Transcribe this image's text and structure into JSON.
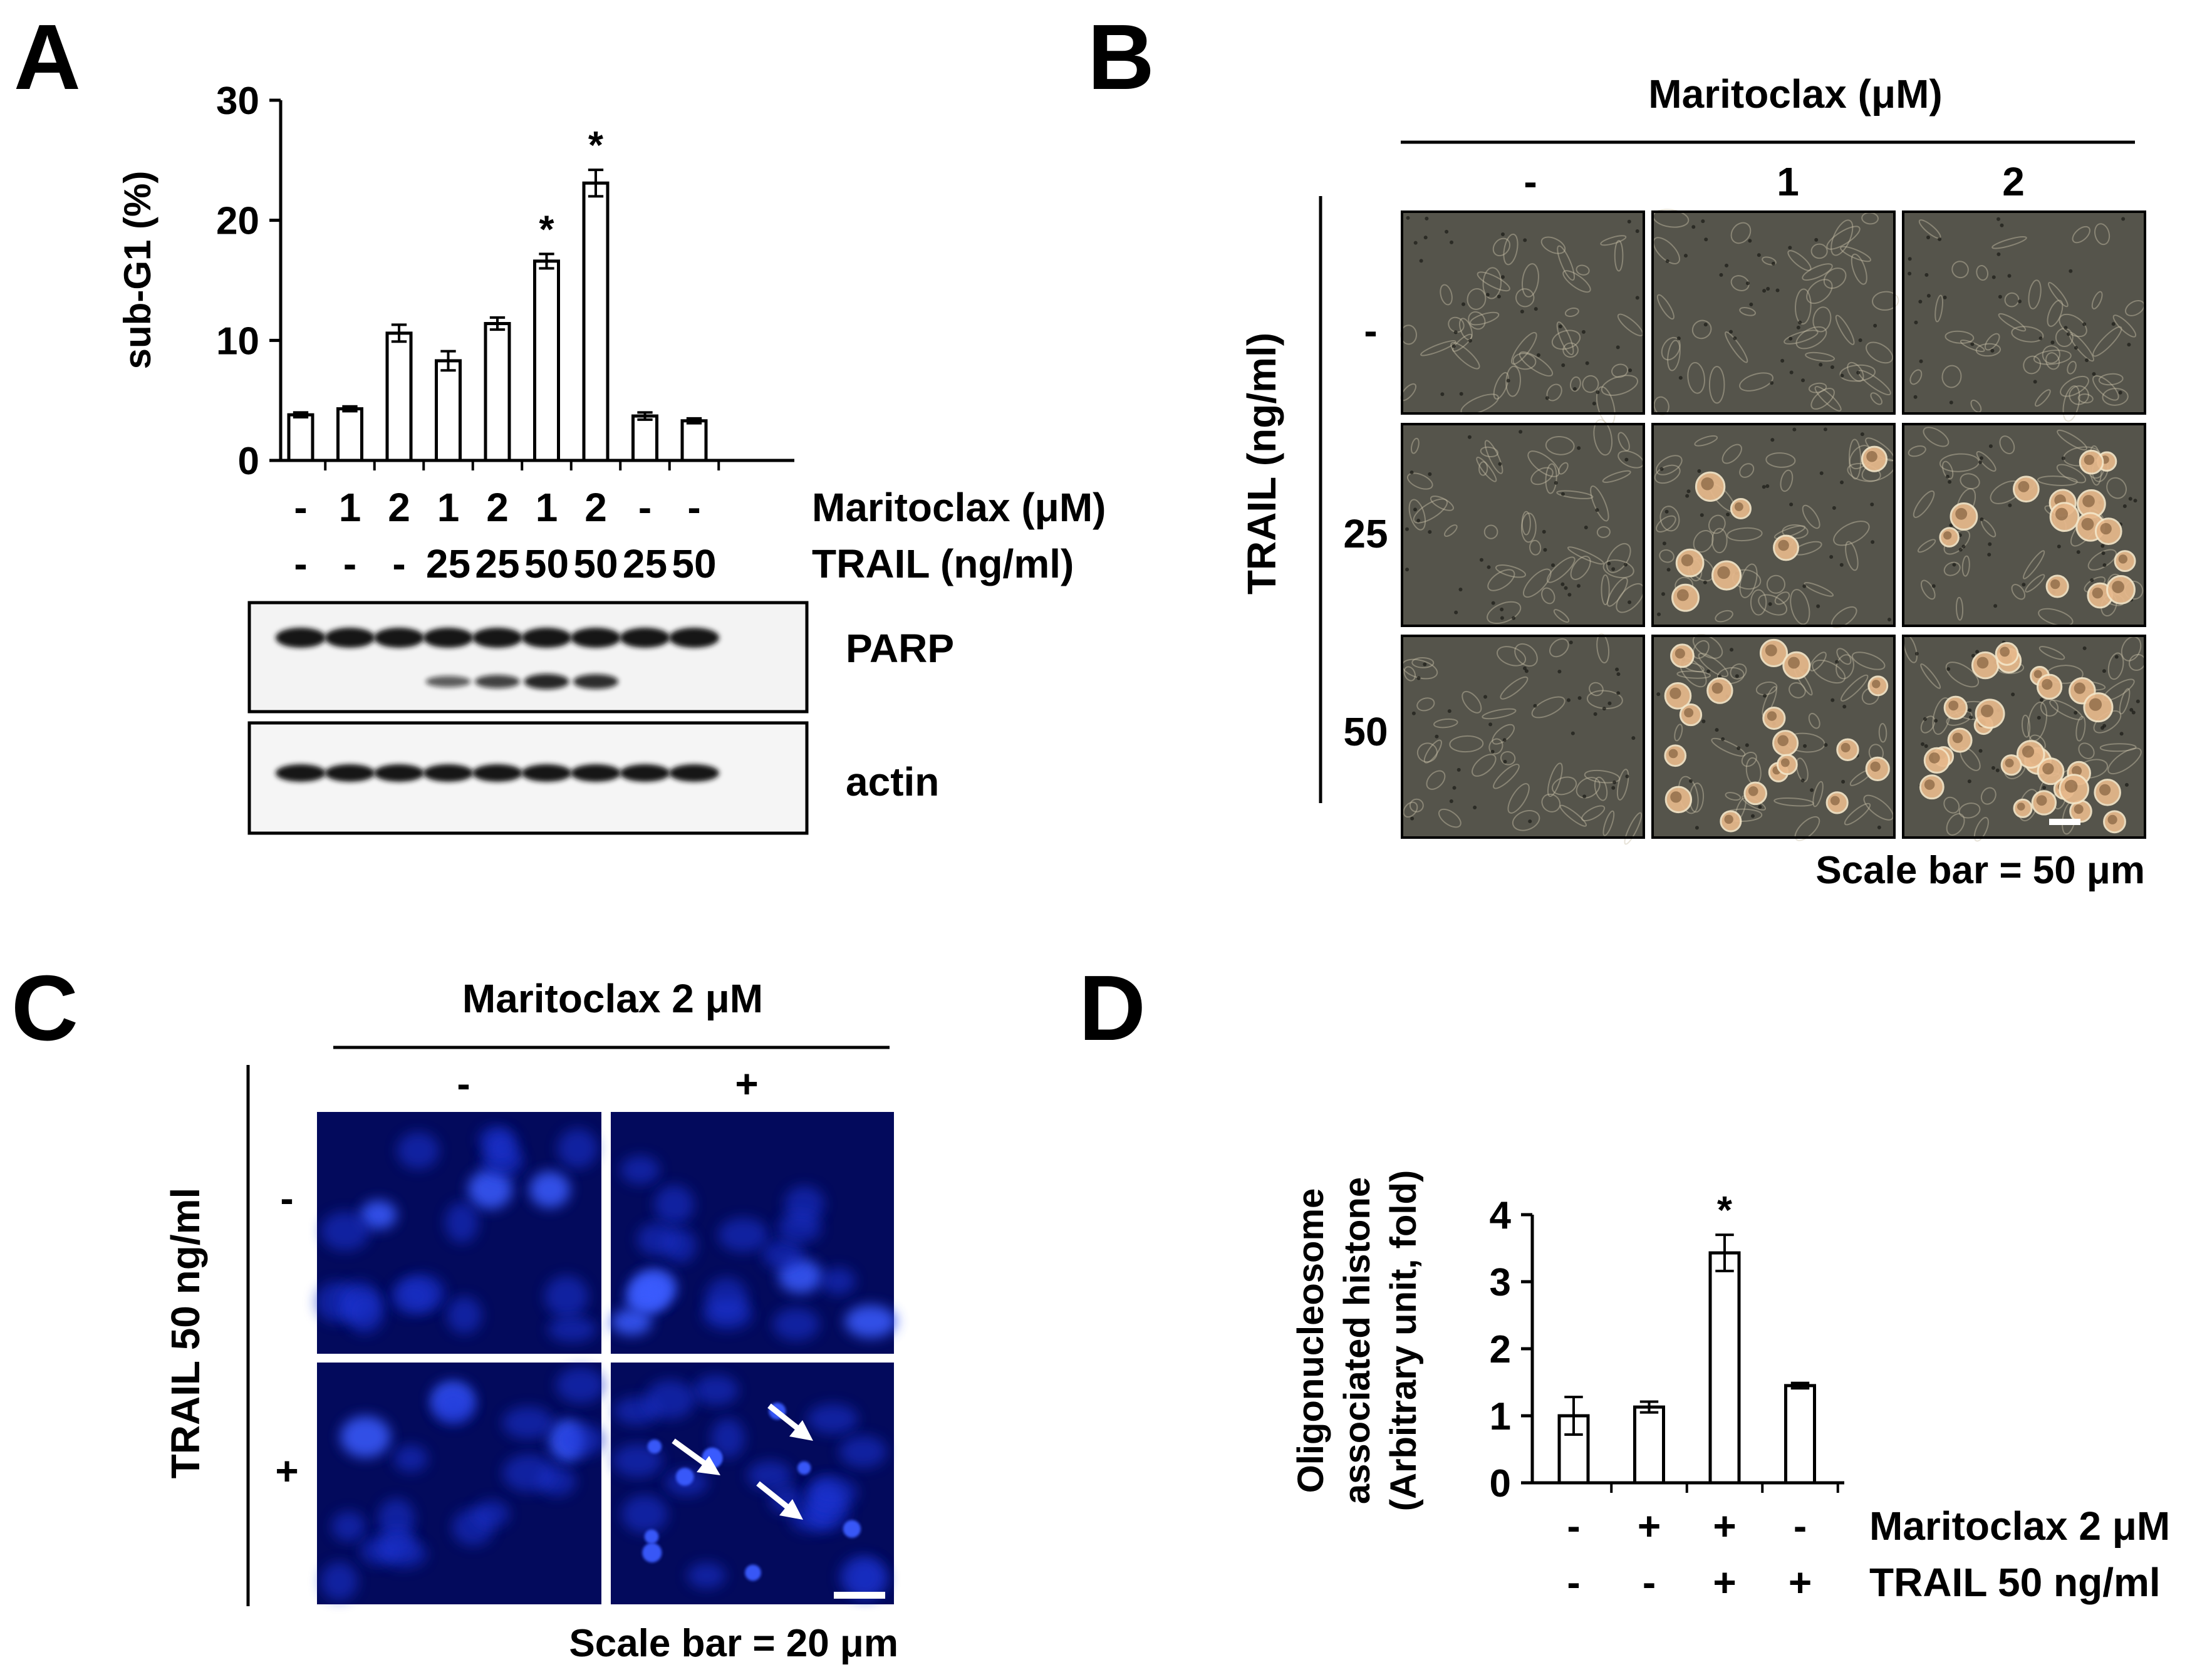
{
  "panels": {
    "a": {
      "letter": "A",
      "chart_data": {
        "type": "bar",
        "ylabel": "sub-G1 (%)",
        "ylim": [
          0,
          30
        ],
        "yticks": [
          "0",
          "10",
          "20",
          "30"
        ],
        "values": [
          3.8,
          4.3,
          10.6,
          8.3,
          11.4,
          16.6,
          23.1,
          3.7,
          3.3
        ],
        "errors": [
          0.2,
          0.2,
          0.7,
          0.8,
          0.5,
          0.6,
          1.1,
          0.3,
          0.2
        ],
        "significance": [
          "",
          "",
          "",
          "",
          "",
          "*",
          "*",
          "",
          ""
        ],
        "row1": [
          "-",
          "1",
          "2",
          "1",
          "2",
          "1",
          "2",
          "-",
          "-"
        ],
        "row2": [
          "-",
          "-",
          "-",
          "25",
          "25",
          "50",
          "50",
          "25",
          "50"
        ],
        "row1_label": "Maritoclax (μM)",
        "row2_label": "TRAIL (ng/ml)"
      },
      "blot": {
        "labels": [
          "PARP",
          "actin"
        ],
        "parp_cleaved": [
          0,
          0,
          0,
          0.5,
          0.7,
          0.9,
          0.85,
          0,
          0
        ]
      }
    },
    "b": {
      "letter": "B",
      "top_title": "Maritoclax (μM)",
      "col_labels": [
        "-",
        "1",
        "2"
      ],
      "side_title": "TRAIL (ng/ml)",
      "row_labels": [
        "-",
        "25",
        "50"
      ],
      "scale_text": "Scale bar = 50 μm"
    },
    "c": {
      "letter": "C",
      "top_title": "Maritoclax 2 μM",
      "col_labels": [
        "-",
        "+"
      ],
      "side_title": "TRAIL 50 ng/ml",
      "row_labels": [
        "-",
        "+"
      ],
      "scale_text": "Scale bar = 20 μm"
    },
    "d": {
      "letter": "D",
      "chart_data": {
        "type": "bar",
        "ylabel_lines": [
          "Oligonucleosome",
          "associated histone",
          "(Arbitrary unit, fold)"
        ],
        "ylim": [
          0,
          4
        ],
        "yticks": [
          "0",
          "1",
          "2",
          "3",
          "4"
        ],
        "values": [
          1.0,
          1.13,
          3.43,
          1.45
        ],
        "errors": [
          0.28,
          0.08,
          0.27,
          0.04
        ],
        "significance": [
          "",
          "",
          "*",
          ""
        ],
        "row1": [
          "-",
          "+",
          "+",
          "-"
        ],
        "row2": [
          "-",
          "-",
          "+",
          "+"
        ],
        "row1_label": "Maritoclax 2 μM",
        "row2_label": "TRAIL 50 ng/ml"
      }
    }
  },
  "colors": {
    "phase_bg": "#55544b",
    "phase_cell_light": "#c9c1a9",
    "phase_cell_dead": "#e7b98c",
    "fluor_bg": "#030a5c",
    "fluor_nucleus": "#1c35d8",
    "fluor_bright": "#3a5cff"
  }
}
